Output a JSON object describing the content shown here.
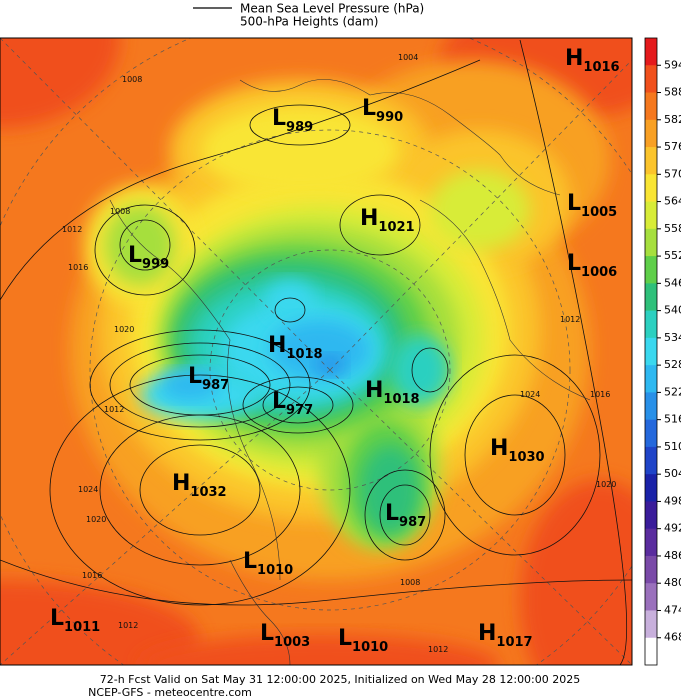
{
  "legend": {
    "line_label": "Mean Sea Level Pressure (hPa)",
    "fill_label": "500-hPa Heights (dam)"
  },
  "colorbar": {
    "ticks": [
      594,
      588,
      582,
      576,
      570,
      564,
      558,
      552,
      546,
      540,
      534,
      528,
      522,
      516,
      510,
      504,
      498,
      492,
      486,
      480,
      474,
      468
    ],
    "colors": [
      "#e41a1c",
      "#f0501c",
      "#f5781e",
      "#f8a024",
      "#fbc42c",
      "#f9e534",
      "#d8ec38",
      "#a6df3e",
      "#5fcf4a",
      "#2fc07a",
      "#2cd0c0",
      "#3ad8ef",
      "#2eb8f0",
      "#2890e8",
      "#2468dc",
      "#1f44c8",
      "#1a22a8",
      "#3a1c9a",
      "#5a2c9e",
      "#7a4aa8",
      "#9a70bc",
      "#c8b0dc",
      "#ffffff"
    ]
  },
  "centers": [
    {
      "kind": "H",
      "value": 1016
    },
    {
      "kind": "L",
      "value": 990
    },
    {
      "kind": "L",
      "value": 989
    },
    {
      "kind": "H",
      "value": 1021
    },
    {
      "kind": "L",
      "value": 1005
    },
    {
      "kind": "L",
      "value": 1006
    },
    {
      "kind": "L",
      "value": 999
    },
    {
      "kind": "H",
      "value": 1018
    },
    {
      "kind": "L",
      "value": 987
    },
    {
      "kind": "L",
      "value": 977
    },
    {
      "kind": "H",
      "value": 1018
    },
    {
      "kind": "H",
      "value": 1030
    },
    {
      "kind": "H",
      "value": 1032
    },
    {
      "kind": "L",
      "value": 987
    },
    {
      "kind": "L",
      "value": 1010
    },
    {
      "kind": "L",
      "value": 1011
    },
    {
      "kind": "L",
      "value": 1003
    },
    {
      "kind": "L",
      "value": 1010
    },
    {
      "kind": "H",
      "value": 1017
    }
  ],
  "contour_labels": [
    1004,
    1008,
    1012,
    1016,
    1008,
    1020,
    1012,
    1024,
    1020,
    1016,
    1012,
    1024,
    1020,
    1012,
    1016,
    1012,
    1008
  ],
  "footer": {
    "line1": "72-h Fcst Valid on Sat May 31 12:00:00 2025, Initialized on Wed May 28 12:00:00 2025",
    "line2": "NCEP-GFS  - meteocentre.com"
  }
}
